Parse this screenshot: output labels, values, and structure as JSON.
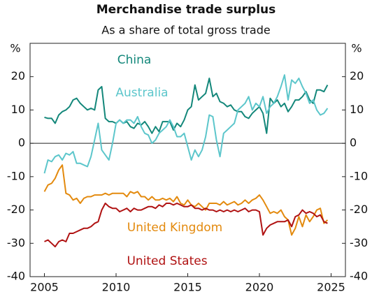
{
  "chart_data": {
    "type": "line",
    "title": "Merchandise trade surplus",
    "subtitle": "As a share of total gross trade",
    "y_label": "%",
    "xlim": [
      2004,
      2026
    ],
    "xticks": [
      2005,
      2010,
      2015,
      2020,
      2025
    ],
    "ylim": [
      -40,
      30
    ],
    "yticks": [
      -40,
      -30,
      -20,
      -10,
      0,
      10,
      20
    ],
    "x": [
      2005,
      2005.25,
      2005.5,
      2005.75,
      2006,
      2006.25,
      2006.5,
      2006.75,
      2007,
      2007.25,
      2007.5,
      2007.75,
      2008,
      2008.25,
      2008.5,
      2008.75,
      2009,
      2009.25,
      2009.5,
      2009.75,
      2010,
      2010.25,
      2010.5,
      2010.75,
      2011,
      2011.25,
      2011.5,
      2011.75,
      2012,
      2012.25,
      2012.5,
      2012.75,
      2013,
      2013.25,
      2013.5,
      2013.75,
      2014,
      2014.25,
      2014.5,
      2014.75,
      2015,
      2015.25,
      2015.5,
      2015.75,
      2016,
      2016.25,
      2016.5,
      2016.75,
      2017,
      2017.25,
      2017.5,
      2017.75,
      2018,
      2018.25,
      2018.5,
      2018.75,
      2019,
      2019.25,
      2019.5,
      2019.75,
      2020,
      2020.25,
      2020.5,
      2020.75,
      2021,
      2021.25,
      2021.5,
      2021.75,
      2022,
      2022.25,
      2022.5,
      2022.75,
      2023,
      2023.25,
      2023.5,
      2023.75,
      2024,
      2024.25,
      2024.5,
      2024.75
    ],
    "series": [
      {
        "name": "China",
        "color": "#13877a",
        "values": [
          7.8,
          7.5,
          7.5,
          6,
          8.5,
          9.5,
          10,
          11,
          13,
          13.5,
          12,
          11,
          10,
          10.5,
          10,
          16,
          17,
          7.5,
          6.5,
          6.5,
          6,
          7,
          6,
          6.5,
          5,
          4.5,
          6,
          5.5,
          6.5,
          5,
          3,
          5,
          3.5,
          6.5,
          6.5,
          6.5,
          4,
          6,
          5,
          7,
          10,
          11,
          17.5,
          13,
          14,
          15,
          19.5,
          14,
          15,
          12.5,
          12,
          11,
          11.5,
          10,
          9.5,
          9.5,
          8,
          7.5,
          9,
          10,
          11,
          9,
          3,
          13.5,
          12,
          13,
          11,
          12,
          9.5,
          11,
          13,
          13,
          14,
          15.5,
          13,
          12,
          16,
          16,
          15.5,
          17.5
        ]
      },
      {
        "name": "Australia",
        "color": "#5cc6cb",
        "values": [
          -9,
          -5,
          -5.5,
          -4,
          -3.5,
          -5,
          -3,
          -3.5,
          -2.5,
          -6,
          -6,
          -6.5,
          -7,
          -4,
          1,
          6,
          -2,
          -3.5,
          -5,
          0,
          6,
          7,
          6,
          7,
          7,
          6,
          8,
          5,
          3,
          2.5,
          0,
          1,
          3,
          4,
          5,
          7,
          5,
          2,
          2,
          3,
          -1,
          -5,
          -2,
          -4,
          -2,
          2,
          8.5,
          8,
          1,
          -4,
          3,
          4,
          5,
          6,
          10,
          11,
          12,
          14,
          10,
          12,
          11,
          14,
          9,
          11,
          12,
          14,
          17,
          20.5,
          13,
          19,
          18,
          19.5,
          17,
          15,
          12,
          13,
          10,
          8.5,
          9,
          10.5
        ]
      },
      {
        "name": "United Kingdom",
        "color": "#e38a0e",
        "values": [
          -14.5,
          -12.5,
          -12,
          -10.5,
          -8,
          -6.5,
          -15,
          -15.5,
          -17,
          -16.5,
          -18,
          -16.5,
          -16,
          -16,
          -15.5,
          -15.5,
          -15.5,
          -15,
          -15.5,
          -15,
          -15,
          -15,
          -15,
          -16,
          -14.5,
          -15,
          -14.5,
          -16,
          -16,
          -17,
          -16,
          -17,
          -17,
          -16.5,
          -17,
          -16.5,
          -17.5,
          -16,
          -18,
          -18.5,
          -17,
          -18.5,
          -19,
          -18,
          -19,
          -20,
          -18,
          -18,
          -18,
          -18.5,
          -17.5,
          -18.5,
          -18,
          -17.5,
          -18.5,
          -18,
          -17,
          -18,
          -17,
          -16.5,
          -15.5,
          -17,
          -19,
          -21,
          -20.5,
          -21,
          -20,
          -22,
          -23,
          -27.5,
          -25.5,
          -22,
          -25,
          -21.5,
          -23.5,
          -22,
          -20,
          -19.5,
          -24,
          -23
        ]
      },
      {
        "name": "United States",
        "color": "#b01212",
        "values": [
          -29.5,
          -29,
          -30,
          -31,
          -29.5,
          -29,
          -29.5,
          -27,
          -27,
          -26.5,
          -26,
          -25.5,
          -25.5,
          -25,
          -24,
          -23.5,
          -20,
          -18,
          -19,
          -19.5,
          -19.5,
          -20.5,
          -20,
          -19.5,
          -20.5,
          -19.5,
          -20,
          -20,
          -19.5,
          -19,
          -19,
          -19.5,
          -18.5,
          -19,
          -18,
          -18,
          -18.5,
          -18,
          -18.5,
          -19,
          -19,
          -18.5,
          -19.5,
          -19.5,
          -20,
          -19.5,
          -20,
          -20,
          -20.5,
          -20,
          -20.5,
          -20,
          -20.5,
          -20,
          -20.5,
          -20,
          -19.5,
          -20.5,
          -20,
          -20,
          -20.5,
          -27.5,
          -25.5,
          -24.5,
          -24,
          -23.5,
          -23.5,
          -23.5,
          -23,
          -25,
          -22,
          -21.5,
          -20,
          -21,
          -20.5,
          -21,
          -22,
          -21.5,
          -23.5,
          -24
        ]
      }
    ]
  }
}
